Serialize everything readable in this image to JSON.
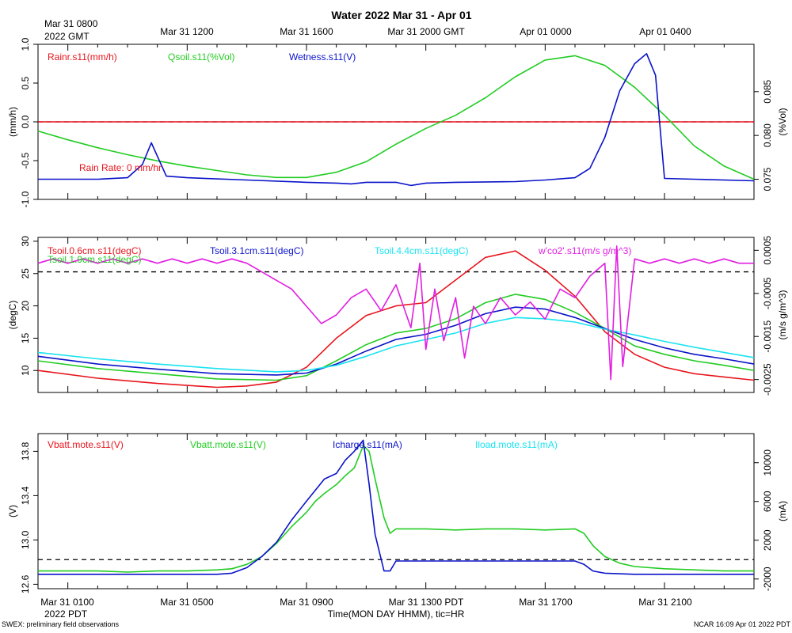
{
  "page": {
    "title": "Water 2022 Mar 31 - Apr 01",
    "top_start_label": "Mar 31 0800",
    "top_start_sub": "2022 GMT",
    "top_ticks": [
      "Mar 31 1200",
      "Mar 31 1600",
      "Mar 31 2000 GMT",
      "Apr 01 0000",
      "Apr 01 0400"
    ],
    "bottom_ticks": [
      "Mar 31 0100",
      "Mar 31 0500",
      "Mar 31 0900",
      "Mar 31 1300 PDT",
      "Mar 31 1700",
      "Mar 31 2100"
    ],
    "bottom_start_sub": "2022 PDT",
    "xlabel": "Time(MON DAY HHMM), tic=HR",
    "footer_left": "SWEX: preliminary field observations",
    "footer_right": "NCAR 16:09 Apr 01 2022 PDT"
  },
  "colors": {
    "red": "#e8141c",
    "green": "#22cc22",
    "blue": "#0a12c8",
    "cyan": "#19e3f0",
    "magenta": "#e11ee1",
    "black": "#000000"
  },
  "chart_data": [
    {
      "type": "line",
      "panel": "rain-wetness",
      "x_unit": "hours since Mar 31 0000 PDT",
      "xlim": [
        0,
        24
      ],
      "ylabel_left": "(mm/h)",
      "ylim_left": [
        -1.0,
        1.0
      ],
      "yticks_left": [
        {
          "v": -1.0,
          "label": "-1.0"
        },
        {
          "v": -0.5,
          "label": "-0.5"
        },
        {
          "v": 0.0,
          "label": "0.0"
        },
        {
          "v": 0.5,
          "label": "0.5"
        },
        {
          "v": 1.0,
          "label": "1.0"
        }
      ],
      "ylabel_right": "(%Vol)",
      "ylim_right": [
        0.0727,
        0.0904
      ],
      "yticks_right": [
        {
          "v": 0.075,
          "label": "0.075"
        },
        {
          "v": 0.08,
          "label": "0.080"
        },
        {
          "v": 0.085,
          "label": "0.085"
        }
      ],
      "zero_line": {
        "axis": "left",
        "value": 0.0
      },
      "legend": [
        {
          "label": "Rainr.s11(mm/h)",
          "color": "red"
        },
        {
          "label": "Qsoil.s11(%Vol)",
          "color": "green"
        },
        {
          "label": "Wetness.s11(V)",
          "color": "blue"
        }
      ],
      "annotation": "Rain Rate: 0 mm/hr",
      "series": [
        {
          "name": "Rainr.s11(mm/h)",
          "color": "red",
          "axis": "left",
          "x": [
            0,
            24
          ],
          "y": [
            0.0,
            0.0
          ]
        },
        {
          "name": "Qsoil.s11(%Vol)",
          "color": "green",
          "axis": "right",
          "x": [
            0,
            1,
            2,
            3,
            4,
            5,
            6,
            7,
            8,
            9,
            10,
            11,
            12,
            13,
            14,
            15,
            16,
            17,
            18,
            19,
            20,
            21,
            22,
            23,
            24
          ],
          "y": [
            0.0805,
            0.0795,
            0.0786,
            0.0778,
            0.0771,
            0.0765,
            0.076,
            0.0755,
            0.0752,
            0.0752,
            0.0758,
            0.077,
            0.079,
            0.0808,
            0.0823,
            0.0843,
            0.0867,
            0.0886,
            0.0891,
            0.088,
            0.0855,
            0.0823,
            0.0788,
            0.0765,
            0.075
          ]
        },
        {
          "name": "Wetness.s11(V)",
          "color": "blue",
          "axis": "left",
          "x": [
            0,
            1,
            2,
            3,
            3.5,
            3.8,
            4.3,
            5,
            7,
            9,
            10,
            10.5,
            11,
            12,
            12.5,
            13,
            14,
            16,
            17,
            18,
            18.5,
            19,
            19.5,
            20,
            20.4,
            20.7,
            21,
            22,
            24
          ],
          "y": [
            -0.74,
            -0.74,
            -0.74,
            -0.72,
            -0.55,
            -0.27,
            -0.7,
            -0.72,
            -0.75,
            -0.78,
            -0.79,
            -0.8,
            -0.78,
            -0.78,
            -0.82,
            -0.79,
            -0.78,
            -0.77,
            -0.75,
            -0.72,
            -0.6,
            -0.2,
            0.4,
            0.75,
            0.88,
            0.6,
            -0.73,
            -0.74,
            -0.76
          ]
        }
      ]
    },
    {
      "type": "line",
      "panel": "soil-temperature",
      "x_unit": "hours since Mar 31 0000 PDT",
      "xlim": [
        0,
        24
      ],
      "ylabel_left": "(degC)",
      "ylim_left": [
        6.6,
        30.6
      ],
      "yticks_left": [
        {
          "v": 10,
          "label": "10"
        },
        {
          "v": 15,
          "label": "15"
        },
        {
          "v": 20,
          "label": "20"
        },
        {
          "v": 25,
          "label": "25"
        },
        {
          "v": 30,
          "label": "30"
        }
      ],
      "ylabel_right": "(m/s g/m^3)",
      "ylim_right": [
        -0.0028,
        0.0008
      ],
      "yticks_right": [
        {
          "v": -0.0025,
          "label": "-0.0025"
        },
        {
          "v": -0.0015,
          "label": "-0.0015"
        },
        {
          "v": -0.0005,
          "label": "-0.0005"
        },
        {
          "v": 0.0005,
          "label": "0.0005"
        }
      ],
      "zero_line": {
        "axis": "right",
        "value": 0.0
      },
      "legend": [
        {
          "label": "Tsoil.0.6cm.s11(degC)",
          "color": "red"
        },
        {
          "label": "Tsoil.1.9cm.s11(degC)",
          "color": "green"
        },
        {
          "label": "Tsoil.3.1cm.s11(degC)",
          "color": "blue"
        },
        {
          "label": "Tsoil.4.4cm.s11(degC)",
          "color": "cyan"
        },
        {
          "label": "w'co2'.s11(m/s g/m^3)",
          "color": "magenta"
        }
      ],
      "series": [
        {
          "name": "Tsoil.0.6cm.s11(degC)",
          "color": "red",
          "axis": "left",
          "x": [
            0,
            2,
            4,
            6,
            7,
            8,
            9,
            10,
            11,
            12,
            13,
            14,
            15,
            16,
            17,
            18,
            19,
            20,
            21,
            22,
            23,
            24
          ],
          "y": [
            10.0,
            8.8,
            8.0,
            7.4,
            7.6,
            8.2,
            10.5,
            15.0,
            18.5,
            20.0,
            20.5,
            24.0,
            27.5,
            28.5,
            25.5,
            21.5,
            16.0,
            12.5,
            10.5,
            9.5,
            9.0,
            8.5
          ]
        },
        {
          "name": "Tsoil.1.9cm.s11(degC)",
          "color": "green",
          "axis": "left",
          "x": [
            0,
            2,
            4,
            6,
            8,
            9,
            10,
            11,
            12,
            13,
            14,
            15,
            16,
            17,
            18,
            19,
            20,
            21,
            22,
            23,
            24
          ],
          "y": [
            11.5,
            10.3,
            9.5,
            8.7,
            8.5,
            9.2,
            11.5,
            14.0,
            15.8,
            16.5,
            18.0,
            20.5,
            21.8,
            21.0,
            19.0,
            16.5,
            13.8,
            12.5,
            11.5,
            10.8,
            10.0
          ]
        },
        {
          "name": "Tsoil.3.1cm.s11(degC)",
          "color": "blue",
          "axis": "left",
          "x": [
            0,
            2,
            4,
            6,
            8,
            9,
            10,
            11,
            12,
            13,
            14,
            15,
            16,
            17,
            18,
            19,
            20,
            21,
            22,
            23,
            24
          ],
          "y": [
            12.2,
            11.0,
            10.2,
            9.5,
            9.3,
            9.6,
            11.0,
            13.0,
            14.8,
            15.6,
            17.0,
            18.8,
            19.8,
            19.5,
            18.2,
            16.5,
            14.8,
            13.5,
            12.5,
            11.8,
            11.0
          ]
        },
        {
          "name": "Tsoil.4.4cm.s11(degC)",
          "color": "cyan",
          "axis": "left",
          "x": [
            0,
            2,
            4,
            6,
            8,
            9,
            10,
            11,
            12,
            13,
            14,
            15,
            16,
            17,
            18,
            19,
            20,
            21,
            22,
            23,
            24
          ],
          "y": [
            12.8,
            11.8,
            11.0,
            10.3,
            9.8,
            10.0,
            10.8,
            12.2,
            13.8,
            14.8,
            15.8,
            17.3,
            18.2,
            18.0,
            17.5,
            16.4,
            15.5,
            14.5,
            13.6,
            12.8,
            12.0
          ]
        },
        {
          "name": "w'co2'.s11(m/s g/m^3)",
          "color": "magenta",
          "axis": "right",
          "x": [
            0,
            0.5,
            1,
            1.5,
            2,
            2.5,
            3,
            3.5,
            4,
            4.5,
            5,
            5.5,
            6,
            6.5,
            7,
            7.5,
            8,
            8.5,
            9,
            9.5,
            10,
            10.5,
            11,
            11.5,
            12,
            12.5,
            12.8,
            13,
            13.3,
            13.6,
            14,
            14.3,
            14.6,
            15,
            15.5,
            16,
            16.5,
            17,
            17.5,
            18,
            18.5,
            19,
            19.2,
            19.4,
            19.6,
            20,
            20.5,
            21,
            21.5,
            22,
            22.5,
            23,
            23.5,
            24
          ],
          "y": [
            0.0002,
            0.0003,
            0.0002,
            0.0003,
            0.0002,
            0.0003,
            0.0002,
            0.0003,
            0.0002,
            0.0003,
            0.0002,
            0.0003,
            0.0002,
            0.0003,
            0.0002,
            0.0,
            -0.0002,
            -0.0004,
            -0.0008,
            -0.0012,
            -0.001,
            -0.0006,
            -0.0004,
            -0.0009,
            -0.0003,
            -0.0013,
            0.0002,
            -0.0018,
            -0.0004,
            -0.0016,
            -0.0006,
            -0.002,
            -0.0008,
            -0.0012,
            -0.0006,
            -0.001,
            -0.0007,
            -0.0011,
            -0.0004,
            -0.0006,
            -0.0001,
            0.0002,
            -0.0025,
            0.0006,
            -0.0022,
            0.0003,
            0.0002,
            0.0003,
            0.0002,
            0.0003,
            0.0002,
            0.0003,
            0.0002,
            0.0002
          ]
        }
      ]
    },
    {
      "type": "line",
      "panel": "battery-charge",
      "x_unit": "hours since Mar 31 0000 PDT",
      "xlim": [
        0,
        24
      ],
      "ylabel_left": "(V)",
      "ylim_left": [
        12.56,
        13.96
      ],
      "yticks_left": [
        {
          "v": 12.6,
          "label": "12.6"
        },
        {
          "v": 13.0,
          "label": "13.0"
        },
        {
          "v": 13.4,
          "label": "13.4"
        },
        {
          "v": 13.8,
          "label": "13.8"
        }
      ],
      "ylabel_right": "(mA)",
      "ylim_right": [
        -3000,
        13000
      ],
      "yticks_right": [
        {
          "v": -2000,
          "label": "-2000"
        },
        {
          "v": 2000,
          "label": "2000"
        },
        {
          "v": 6000,
          "label": "6000"
        },
        {
          "v": 10000,
          "label": "10000"
        }
      ],
      "zero_line": {
        "axis": "right",
        "value": 0
      },
      "legend": [
        {
          "label": "Vbatt.mote.s11(V)",
          "color": "red"
        },
        {
          "label": "Vbatt.mote.s11(V)",
          "color": "green"
        },
        {
          "label": "Icharge.s11(mA)",
          "color": "blue"
        },
        {
          "label": "Iload.mote.s11(mA)",
          "color": "cyan"
        }
      ],
      "series": [
        {
          "name": "Vbatt.mote.s11(V)",
          "color": "green",
          "axis": "left",
          "x": [
            0,
            2,
            3,
            4,
            5,
            6,
            6.5,
            7,
            7.5,
            8,
            8.5,
            9,
            9.3,
            9.6,
            10,
            10.3,
            10.6,
            10.9,
            11.1,
            11.3,
            11.6,
            11.8,
            12,
            13,
            14,
            15,
            16,
            17,
            18,
            18.3,
            18.6,
            19,
            19.5,
            20,
            21,
            22,
            23,
            24
          ],
          "y": [
            12.72,
            12.72,
            12.71,
            12.72,
            12.72,
            12.73,
            12.74,
            12.78,
            12.85,
            12.97,
            13.12,
            13.25,
            13.35,
            13.42,
            13.5,
            13.58,
            13.65,
            13.85,
            13.8,
            13.55,
            13.2,
            13.06,
            13.1,
            13.1,
            13.09,
            13.1,
            13.1,
            13.09,
            13.1,
            13.06,
            12.95,
            12.85,
            12.79,
            12.76,
            12.74,
            12.73,
            12.72,
            12.72
          ]
        },
        {
          "name": "Icharge.s11(mA)",
          "color": "blue",
          "axis": "left",
          "x": [
            0,
            2,
            3,
            4,
            5,
            6,
            6.5,
            7,
            7.5,
            8,
            8.5,
            9,
            9.3,
            9.6,
            10,
            10.3,
            10.6,
            10.9,
            11.1,
            11.3,
            11.6,
            11.8,
            12,
            14,
            16,
            18,
            18.3,
            18.6,
            19,
            20,
            22,
            24
          ],
          "y": [
            12.69,
            12.69,
            12.69,
            12.69,
            12.69,
            12.69,
            12.7,
            12.75,
            12.85,
            12.98,
            13.18,
            13.35,
            13.45,
            13.55,
            13.6,
            13.72,
            13.8,
            13.9,
            13.5,
            13.05,
            12.72,
            12.72,
            12.81,
            12.81,
            12.81,
            12.81,
            12.78,
            12.72,
            12.7,
            12.69,
            12.69,
            12.69
          ]
        }
      ]
    }
  ]
}
